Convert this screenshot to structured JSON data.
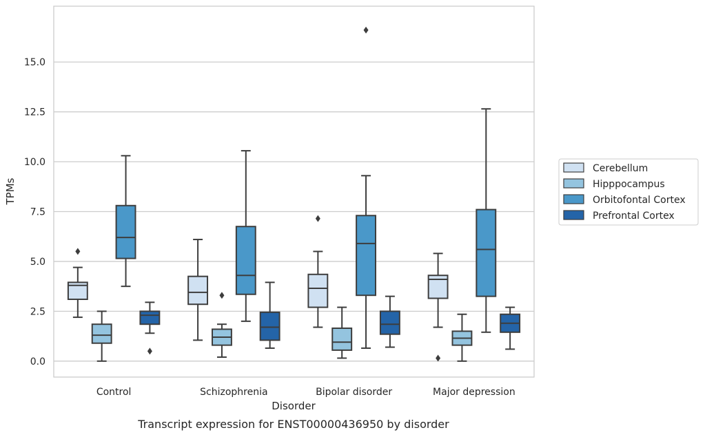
{
  "chart_data": {
    "type": "box",
    "title": "Transcript expression for ENST00000436950 by disorder",
    "xlabel": "Disorder",
    "ylabel": "TPMs",
    "ylim": [
      -0.8,
      17.8
    ],
    "yticks": [
      0.0,
      2.5,
      5.0,
      7.5,
      10.0,
      12.5,
      15.0
    ],
    "ytick_labels": [
      "0.0",
      "2.5",
      "5.0",
      "7.5",
      "10.0",
      "12.5",
      "15.0"
    ],
    "grid": "horizontal",
    "legend_position": "right",
    "categories": [
      "Control",
      "Schizophrenia",
      "Bipolar disorder",
      "Major depression"
    ],
    "series": [
      {
        "name": "Cerebellum",
        "color": "#d0e1f2",
        "boxes": [
          {
            "whisker_low": 2.2,
            "q1": 3.1,
            "median": 3.8,
            "q3": 3.95,
            "whisker_high": 4.7,
            "outliers": [
              5.5
            ]
          },
          {
            "whisker_low": 1.05,
            "q1": 2.85,
            "median": 3.45,
            "q3": 4.25,
            "whisker_high": 6.1,
            "outliers": []
          },
          {
            "whisker_low": 1.7,
            "q1": 2.7,
            "median": 3.65,
            "q3": 4.35,
            "whisker_high": 5.5,
            "outliers": [
              7.15
            ]
          },
          {
            "whisker_low": 1.7,
            "q1": 3.15,
            "median": 4.1,
            "q3": 4.3,
            "whisker_high": 5.4,
            "outliers": [
              0.15
            ]
          }
        ]
      },
      {
        "name": "Hipppocampus",
        "color": "#94c4df",
        "boxes": [
          {
            "whisker_low": 0.0,
            "q1": 0.9,
            "median": 1.3,
            "q3": 1.85,
            "whisker_high": 2.5,
            "outliers": []
          },
          {
            "whisker_low": 0.2,
            "q1": 0.8,
            "median": 1.2,
            "q3": 1.6,
            "whisker_high": 1.85,
            "outliers": [
              3.3
            ]
          },
          {
            "whisker_low": 0.15,
            "q1": 0.55,
            "median": 0.95,
            "q3": 1.65,
            "whisker_high": 2.7,
            "outliers": []
          },
          {
            "whisker_low": 0.0,
            "q1": 0.8,
            "median": 1.15,
            "q3": 1.5,
            "whisker_high": 2.35,
            "outliers": []
          }
        ]
      },
      {
        "name": "Orbitofontal Cortex",
        "color": "#4a98c9",
        "boxes": [
          {
            "whisker_low": 3.75,
            "q1": 5.15,
            "median": 6.2,
            "q3": 7.8,
            "whisker_high": 10.3,
            "outliers": []
          },
          {
            "whisker_low": 2.0,
            "q1": 3.35,
            "median": 4.3,
            "q3": 6.75,
            "whisker_high": 10.55,
            "outliers": []
          },
          {
            "whisker_low": 0.65,
            "q1": 3.3,
            "median": 5.9,
            "q3": 7.3,
            "whisker_high": 9.3,
            "outliers": [
              16.6
            ]
          },
          {
            "whisker_low": 1.45,
            "q1": 3.25,
            "median": 5.6,
            "q3": 7.6,
            "whisker_high": 12.65,
            "outliers": []
          }
        ]
      },
      {
        "name": "Prefrontal Cortex",
        "color": "#2464a8",
        "boxes": [
          {
            "whisker_low": 1.4,
            "q1": 1.85,
            "median": 2.3,
            "q3": 2.5,
            "whisker_high": 2.95,
            "outliers": [
              0.5
            ]
          },
          {
            "whisker_low": 0.65,
            "q1": 1.05,
            "median": 1.7,
            "q3": 2.45,
            "whisker_high": 3.95,
            "outliers": []
          },
          {
            "whisker_low": 0.7,
            "q1": 1.35,
            "median": 1.85,
            "q3": 2.5,
            "whisker_high": 3.25,
            "outliers": []
          },
          {
            "whisker_low": 0.6,
            "q1": 1.45,
            "median": 1.9,
            "q3": 2.35,
            "whisker_high": 2.7,
            "outliers": []
          }
        ]
      }
    ]
  }
}
